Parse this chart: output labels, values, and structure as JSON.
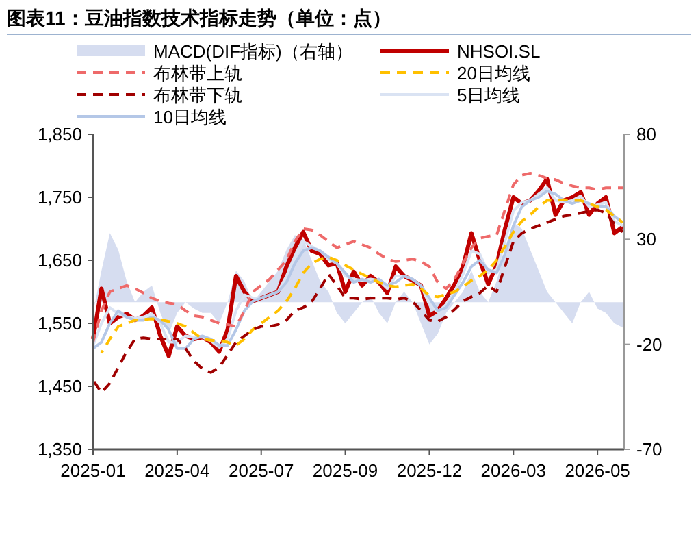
{
  "chart_data": {
    "type": "line",
    "title": "图表11：豆油指数技术指标走势（单位：点）",
    "categories": [
      "2025-01",
      null,
      null,
      null,
      null,
      null,
      null,
      null,
      null,
      null,
      "2025-04",
      null,
      null,
      null,
      null,
      null,
      null,
      null,
      null,
      null,
      "2025-07",
      null,
      null,
      null,
      null,
      null,
      null,
      null,
      null,
      null,
      "2025-09",
      null,
      null,
      null,
      null,
      null,
      null,
      null,
      null,
      null,
      "2025-12",
      null,
      null,
      null,
      null,
      null,
      null,
      null,
      null,
      null,
      "2026-03",
      null,
      null,
      null,
      null,
      null,
      null,
      null,
      null,
      null,
      "2026-05",
      null,
      null,
      null
    ],
    "series": [
      {
        "name": "MACD(DIF指标)（右轴）",
        "type": "area",
        "axis": "y2",
        "color": "#d6ddf0",
        "values": [
          -5,
          15,
          33,
          25,
          10,
          0,
          5,
          8,
          -5,
          -15,
          -5,
          0,
          -3,
          -5,
          -5,
          -10,
          0,
          15,
          10,
          0,
          5,
          10,
          15,
          25,
          32,
          30,
          20,
          10,
          5,
          -5,
          -10,
          -5,
          0,
          3,
          -5,
          -10,
          0,
          5,
          0,
          -10,
          -20,
          -15,
          -5,
          0,
          5,
          15,
          5,
          0,
          10,
          25,
          38,
          35,
          25,
          15,
          5,
          0,
          -5,
          -10,
          0,
          5,
          -3,
          -5,
          -10,
          -12
        ]
      },
      {
        "name": "NHSOI.SL",
        "color": "#c00000",
        "line_style": "solid",
        "values": [
          1525,
          1605,
          1550,
          1560,
          1565,
          1555,
          1562,
          1575,
          1530,
          1498,
          1545,
          1530,
          1525,
          1528,
          1520,
          1505,
          1540,
          1625,
          1600,
          1585,
          1590,
          1595,
          1600,
          1640,
          1670,
          1695,
          1665,
          1660,
          1642,
          1645,
          1600,
          1632,
          1610,
          1625,
          1615,
          1598,
          1640,
          1625,
          1618,
          1610,
          1562,
          1570,
          1590,
          1612,
          1640,
          1693,
          1650,
          1612,
          1642,
          1700,
          1750,
          1740,
          1745,
          1760,
          1779,
          1722,
          1745,
          1750,
          1758,
          1722,
          1740,
          1750,
          1693,
          1703
        ]
      },
      {
        "name": "布林带上轨",
        "color": "#ee6a6a",
        "line_style": "dashed",
        "values": [
          1520,
          1570,
          1600,
          1605,
          1610,
          1605,
          1598,
          1590,
          1585,
          1582,
          1580,
          1570,
          1562,
          1560,
          1555,
          1550,
          1548,
          1545,
          1570,
          1600,
          1610,
          1620,
          1635,
          1650,
          1680,
          1700,
          1698,
          1690,
          1680,
          1670,
          1675,
          1680,
          1675,
          1670,
          1660,
          1652,
          1648,
          1650,
          1652,
          1648,
          1640,
          1615,
          1605,
          1620,
          1645,
          1670,
          1685,
          1688,
          1690,
          1730,
          1770,
          1785,
          1788,
          1785,
          1780,
          1778,
          1772,
          1768,
          1765,
          1765,
          1762,
          1765,
          1765,
          1765
        ]
      },
      {
        "name": "20日均线",
        "color": "#ffc000",
        "line_style": "dashed",
        "values": [
          null,
          1503,
          1525,
          1545,
          1550,
          1555,
          1556,
          1557,
          1556,
          1553,
          1550,
          1545,
          1535,
          1525,
          1523,
          1522,
          1520,
          1515,
          1525,
          1540,
          1550,
          1560,
          1570,
          1585,
          1605,
          1630,
          1645,
          1652,
          1655,
          1650,
          1642,
          1635,
          1628,
          1622,
          1615,
          1610,
          1608,
          1610,
          1612,
          1605,
          1594,
          1592,
          1596,
          1600,
          1608,
          1618,
          1625,
          1635,
          1650,
          1672,
          1695,
          1712,
          1722,
          1735,
          1745,
          1745,
          1746,
          1745,
          1745,
          1740,
          1735,
          1730,
          1720,
          1710
        ]
      },
      {
        "name": "布林带下轨",
        "color": "#a00000",
        "line_style": "dashed",
        "values": [
          1460,
          1440,
          1455,
          1480,
          1505,
          1525,
          1527,
          1525,
          1525,
          1525,
          1525,
          1510,
          1490,
          1478,
          1472,
          1480,
          1500,
          1520,
          1530,
          1540,
          1545,
          1545,
          1548,
          1555,
          1570,
          1575,
          1584,
          1605,
          1628,
          1610,
          1590,
          1590,
          1588,
          1590,
          1590,
          1590,
          1588,
          1590,
          1585,
          1570,
          1555,
          1553,
          1560,
          1572,
          1585,
          1592,
          1598,
          1610,
          1600,
          1640,
          1680,
          1693,
          1700,
          1705,
          1710,
          1715,
          1720,
          1722,
          1725,
          1728,
          1730,
          1725,
          1708,
          1695
        ]
      },
      {
        "name": "5日均线",
        "color": "#dae3f3",
        "line_style": "solid",
        "values": [
          1515,
          1550,
          1575,
          1565,
          1560,
          1558,
          1560,
          1565,
          1550,
          1520,
          1520,
          1530,
          1528,
          1528,
          1522,
          1512,
          1525,
          1570,
          1595,
          1590,
          1590,
          1595,
          1600,
          1625,
          1655,
          1680,
          1672,
          1665,
          1652,
          1645,
          1625,
          1620,
          1618,
          1620,
          1618,
          1605,
          1625,
          1625,
          1620,
          1610,
          1580,
          1568,
          1580,
          1600,
          1628,
          1665,
          1660,
          1630,
          1635,
          1680,
          1728,
          1742,
          1745,
          1755,
          1765,
          1745,
          1742,
          1745,
          1752,
          1735,
          1738,
          1742,
          1712,
          1705
        ]
      },
      {
        "name": "10日均线",
        "color": "#b4c7e7",
        "line_style": "solid",
        "values": [
          1510,
          1520,
          1550,
          1570,
          1560,
          1555,
          1555,
          1560,
          1555,
          1540,
          1510,
          1510,
          1525,
          1530,
          1525,
          1515,
          1515,
          1540,
          1570,
          1585,
          1590,
          1595,
          1600,
          1615,
          1645,
          1665,
          1670,
          1665,
          1655,
          1645,
          1630,
          1615,
          1620,
          1615,
          1620,
          1610,
          1615,
          1625,
          1620,
          1610,
          1590,
          1570,
          1575,
          1595,
          1615,
          1640,
          1650,
          1635,
          1630,
          1660,
          1705,
          1735,
          1745,
          1750,
          1760,
          1755,
          1745,
          1740,
          1745,
          1740,
          1735,
          1735,
          1720,
          1710
        ]
      }
    ],
    "ylim": [
      1350,
      1850
    ],
    "yticks": [
      {
        "value": 1350,
        "label": "1,350"
      },
      {
        "value": 1450,
        "label": "1,450"
      },
      {
        "value": 1550,
        "label": "1,550"
      },
      {
        "value": 1650,
        "label": "1,650"
      },
      {
        "value": 1750,
        "label": "1,750"
      },
      {
        "value": 1850,
        "label": "1,850"
      }
    ],
    "y2lim": [
      -70,
      80
    ],
    "y2ticks": [
      -70,
      -20,
      30,
      80
    ],
    "grid": false,
    "legend": "top"
  }
}
